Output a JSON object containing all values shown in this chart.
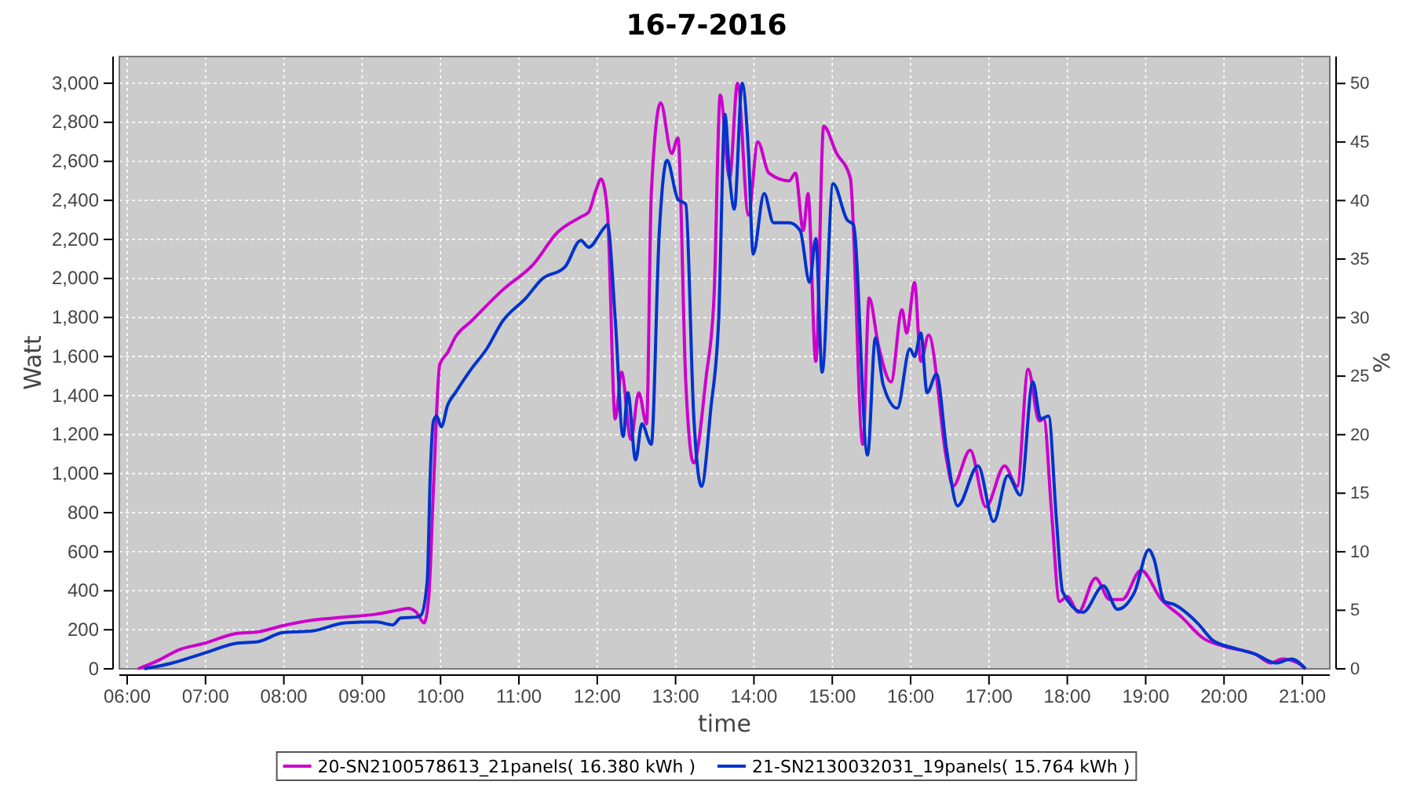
{
  "chart_data": {
    "type": "line",
    "title": "16-7-2016",
    "xlabel": "time",
    "ylabel": "Watt",
    "y2label": "%",
    "xlim": [
      5.9,
      21.35
    ],
    "ylim": [
      0,
      3137
    ],
    "y2lim": [
      0,
      52.3
    ],
    "xticks": [
      {
        "value": 6,
        "label": "06:00"
      },
      {
        "value": 7,
        "label": "07:00"
      },
      {
        "value": 8,
        "label": "08:00"
      },
      {
        "value": 9,
        "label": "09:00"
      },
      {
        "value": 10,
        "label": "10:00"
      },
      {
        "value": 11,
        "label": "11:00"
      },
      {
        "value": 12,
        "label": "12:00"
      },
      {
        "value": 13,
        "label": "13:00"
      },
      {
        "value": 14,
        "label": "14:00"
      },
      {
        "value": 15,
        "label": "15:00"
      },
      {
        "value": 16,
        "label": "16:00"
      },
      {
        "value": 17,
        "label": "17:00"
      },
      {
        "value": 18,
        "label": "18:00"
      },
      {
        "value": 19,
        "label": "19:00"
      },
      {
        "value": 20,
        "label": "20:00"
      },
      {
        "value": 21,
        "label": "21:00"
      }
    ],
    "yticks": [
      0,
      200,
      400,
      600,
      800,
      {
        "value": 1000,
        "label": "1,000"
      },
      {
        "value": 1200,
        "label": "1,200"
      },
      {
        "value": 1400,
        "label": "1,400"
      },
      {
        "value": 1600,
        "label": "1,600"
      },
      {
        "value": 1800,
        "label": "1,800"
      },
      {
        "value": 2000,
        "label": "2,000"
      },
      {
        "value": 2200,
        "label": "2,200"
      },
      {
        "value": 2400,
        "label": "2,400"
      },
      {
        "value": 2600,
        "label": "2,600"
      },
      {
        "value": 2800,
        "label": "2,800"
      },
      {
        "value": 3000,
        "label": "3,000"
      }
    ],
    "y2ticks": [
      0,
      5,
      10,
      15,
      20,
      25,
      30,
      35,
      40,
      45,
      50
    ],
    "grid": true,
    "legend": "bottom",
    "line_style": "solid",
    "series": [
      {
        "name": "20-SN2100578613_21panels( 16.380 kWh )",
        "color": "#cc00cc",
        "x": [
          6.14,
          6.38,
          6.68,
          6.98,
          7.38,
          7.68,
          7.98,
          8.38,
          8.78,
          9.18,
          9.45,
          9.59,
          9.69,
          9.79,
          9.85,
          9.91,
          9.99,
          10.09,
          10.19,
          10.39,
          10.79,
          11.19,
          11.49,
          11.79,
          11.89,
          11.99,
          12.05,
          12.13,
          12.23,
          12.31,
          12.43,
          12.53,
          12.63,
          12.69,
          12.81,
          12.95,
          13.03,
          13.13,
          13.23,
          13.39,
          13.49,
          13.57,
          13.69,
          13.79,
          13.93,
          14.05,
          14.19,
          14.45,
          14.53,
          14.63,
          14.69,
          14.79,
          14.89,
          15.05,
          15.23,
          15.39,
          15.47,
          15.59,
          15.75,
          15.89,
          15.95,
          16.05,
          16.13,
          16.23,
          16.46,
          16.54,
          16.76,
          16.96,
          17.2,
          17.36,
          17.5,
          17.64,
          17.7,
          17.8,
          17.9,
          18.0,
          18.14,
          18.36,
          18.54,
          18.7,
          18.94,
          19.2,
          19.46,
          19.74,
          20.0,
          20.4,
          20.6,
          20.74,
          20.94,
          21.04
        ],
        "values": [
          0,
          40,
          100,
          130,
          180,
          190,
          220,
          250,
          265,
          280,
          300,
          310,
          290,
          235,
          370,
          930,
          1560,
          1620,
          1700,
          1780,
          1940,
          2075,
          2235,
          2315,
          2340,
          2460,
          2510,
          2340,
          1280,
          1520,
          1175,
          1415,
          1255,
          2435,
          2900,
          2640,
          2720,
          1470,
          1055,
          1495,
          1900,
          2940,
          2515,
          3000,
          2325,
          2700,
          2540,
          2500,
          2540,
          2245,
          2435,
          1575,
          2780,
          2645,
          2515,
          1150,
          1900,
          1655,
          1470,
          1840,
          1720,
          1980,
          1575,
          1710,
          1070,
          935,
          1120,
          830,
          1040,
          935,
          1535,
          1270,
          1280,
          795,
          345,
          370,
          290,
          465,
          355,
          355,
          505,
          355,
          265,
          155,
          115,
          75,
          30,
          50,
          30,
          0
        ]
      },
      {
        "name": "21-SN2130032031_19panels( 15.764 kWh )",
        "color": "#0033cc",
        "x": [
          6.22,
          6.58,
          6.98,
          7.38,
          7.68,
          7.98,
          8.38,
          8.78,
          9.18,
          9.39,
          9.49,
          9.69,
          9.75,
          9.83,
          9.87,
          9.91,
          9.95,
          10.01,
          10.09,
          10.19,
          10.39,
          10.59,
          10.79,
          11.09,
          11.29,
          11.59,
          11.79,
          11.89,
          12.09,
          12.13,
          12.23,
          12.33,
          12.39,
          12.49,
          12.57,
          12.69,
          12.79,
          12.89,
          13.03,
          13.13,
          13.23,
          13.33,
          13.45,
          13.55,
          13.63,
          13.69,
          13.75,
          13.85,
          13.93,
          13.99,
          14.13,
          14.25,
          14.45,
          14.59,
          14.71,
          14.79,
          14.87,
          15.01,
          15.19,
          15.27,
          15.45,
          15.55,
          15.65,
          15.83,
          15.99,
          16.05,
          16.13,
          16.21,
          16.33,
          16.46,
          16.6,
          16.86,
          17.06,
          17.24,
          17.4,
          17.56,
          17.66,
          17.76,
          17.86,
          17.94,
          18.2,
          18.46,
          18.64,
          18.86,
          19.04,
          19.1,
          19.24,
          19.36,
          19.66,
          19.86,
          20.14,
          20.4,
          20.66,
          20.86,
          21.04
        ],
        "values": [
          0,
          30,
          80,
          130,
          140,
          185,
          195,
          235,
          240,
          225,
          260,
          265,
          275,
          450,
          1010,
          1270,
          1295,
          1240,
          1350,
          1415,
          1535,
          1640,
          1780,
          1900,
          1995,
          2060,
          2195,
          2160,
          2260,
          2275,
          1790,
          1190,
          1415,
          1070,
          1255,
          1150,
          2220,
          2605,
          2405,
          2380,
          1310,
          935,
          1335,
          1790,
          2840,
          2515,
          2355,
          3000,
          2645,
          2125,
          2435,
          2285,
          2285,
          2245,
          1980,
          2205,
          1520,
          2485,
          2300,
          2275,
          1095,
          1695,
          1455,
          1335,
          1640,
          1600,
          1720,
          1415,
          1510,
          1120,
          835,
          1040,
          755,
          990,
          890,
          1470,
          1280,
          1295,
          770,
          395,
          290,
          425,
          305,
          395,
          610,
          570,
          345,
          330,
          235,
          145,
          105,
          75,
          30,
          50,
          0
        ]
      }
    ]
  }
}
